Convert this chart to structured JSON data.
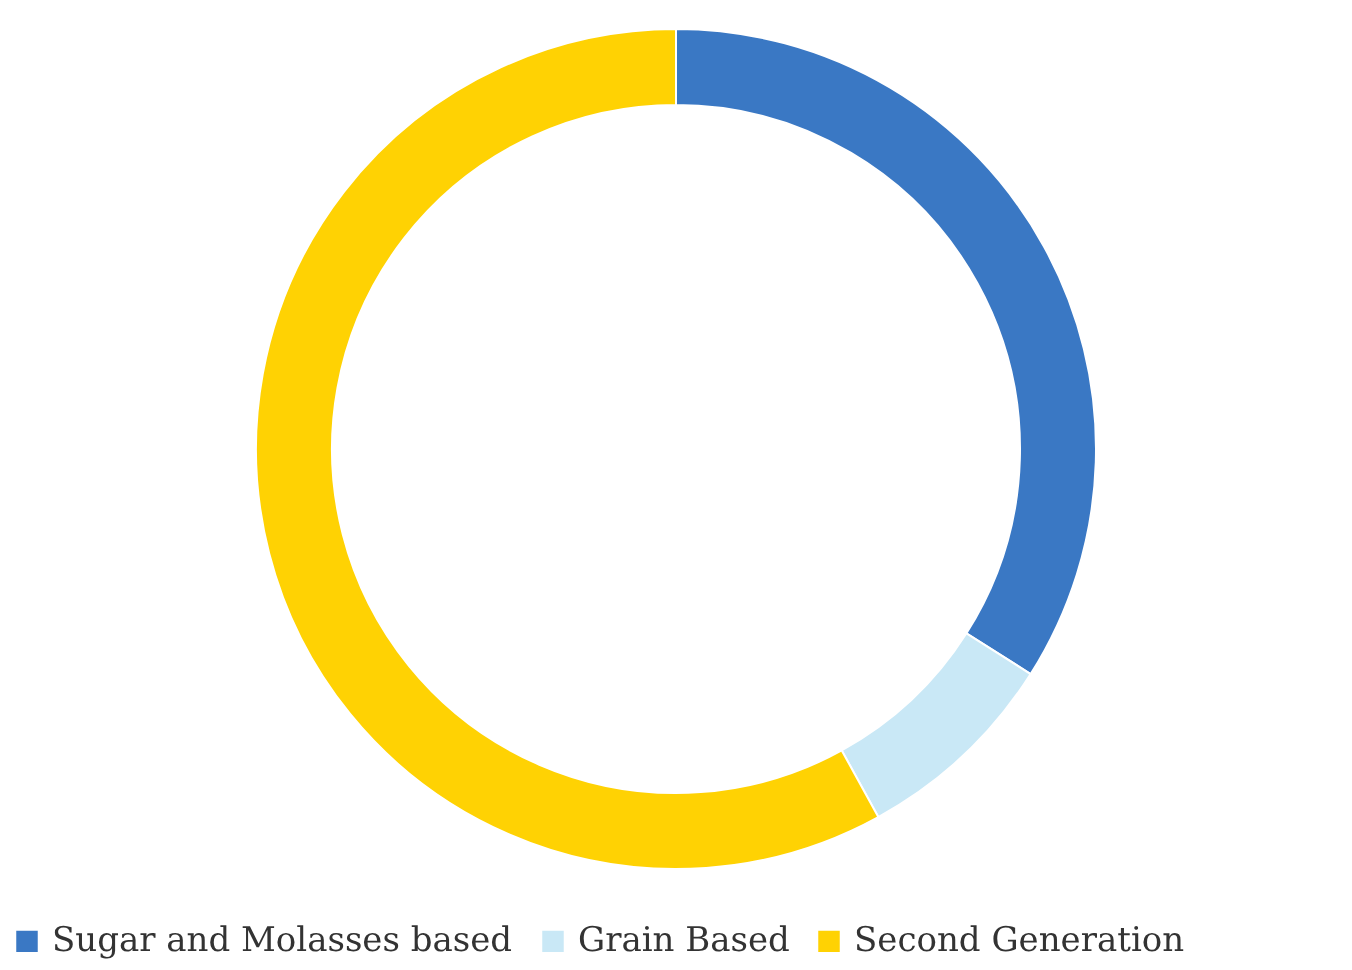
{
  "chart_data": {
    "type": "donut",
    "categories": [
      "Sugar and Molasses based",
      "Grain Based",
      "Second Generation"
    ],
    "values": [
      34,
      8,
      58
    ],
    "colors": [
      "#3a78c4",
      "#c9e8f6",
      "#ffd203"
    ],
    "legend": "bottom"
  }
}
